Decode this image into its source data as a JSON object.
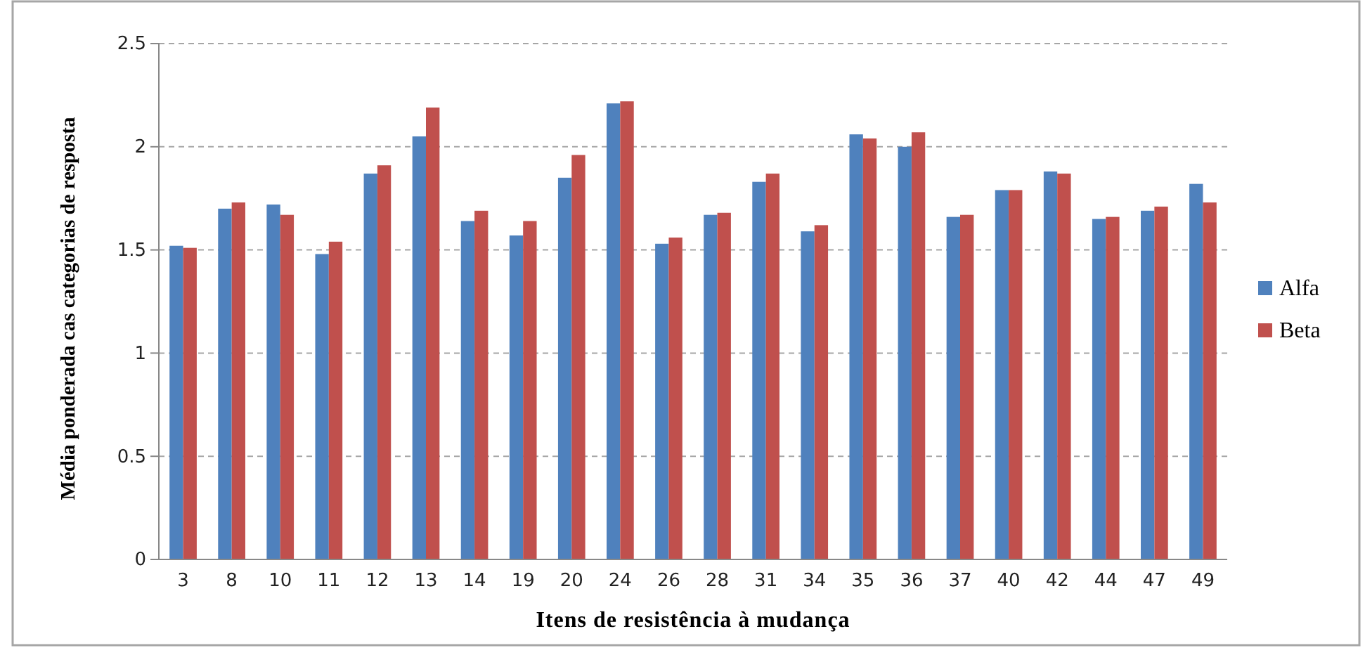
{
  "chart_data": {
    "type": "bar",
    "xlabel": "Itens de resistência à mudança",
    "ylabel": "Média ponderada cas categorias de resposta",
    "categories": [
      "3",
      "8",
      "10",
      "11",
      "12",
      "13",
      "14",
      "19",
      "20",
      "24",
      "26",
      "28",
      "31",
      "34",
      "35",
      "36",
      "37",
      "40",
      "42",
      "44",
      "47",
      "49"
    ],
    "series": [
      {
        "name": "Alfa",
        "color": "#4f81bd",
        "values": [
          1.52,
          1.7,
          1.72,
          1.48,
          1.87,
          2.05,
          1.64,
          1.57,
          1.85,
          2.21,
          1.53,
          1.67,
          1.83,
          1.59,
          2.06,
          2.0,
          1.66,
          1.79,
          1.88,
          1.65,
          1.69,
          1.82
        ]
      },
      {
        "name": "Beta",
        "color": "#c0504d",
        "values": [
          1.51,
          1.73,
          1.67,
          1.54,
          1.91,
          2.19,
          1.69,
          1.64,
          1.96,
          2.22,
          1.56,
          1.68,
          1.87,
          1.62,
          2.04,
          2.07,
          1.67,
          1.79,
          1.87,
          1.66,
          1.71,
          1.73
        ]
      }
    ],
    "ylim": [
      0,
      2.5
    ],
    "yticks": [
      0,
      0.5,
      1,
      1.5,
      2,
      2.5
    ],
    "grid": "y",
    "legend": "right"
  }
}
